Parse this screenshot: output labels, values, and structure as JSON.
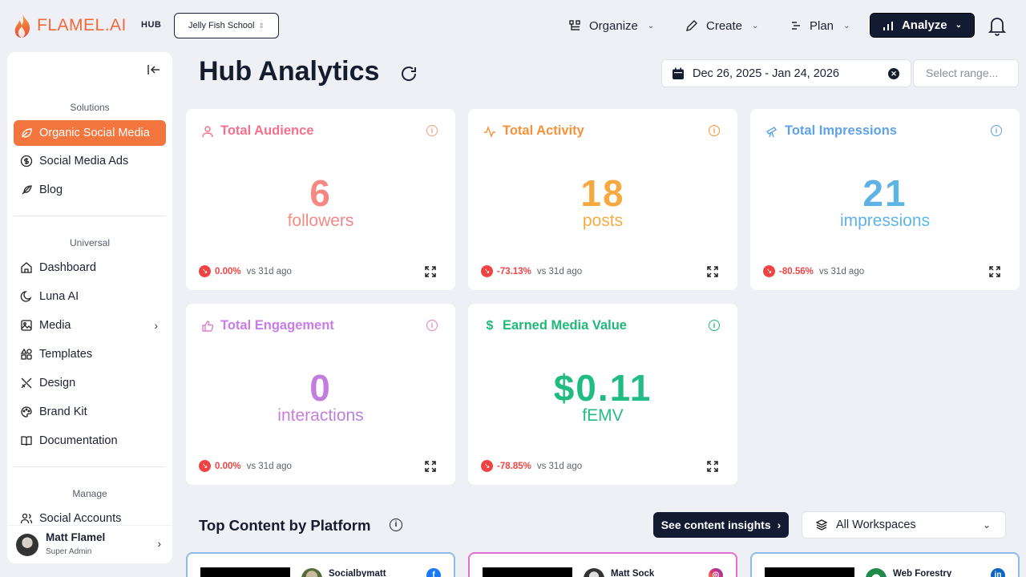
{
  "brand": {
    "logo_text": "FLAMEL.AI",
    "hub_tag": "HUB",
    "accent": "#f06a3b"
  },
  "workspace_select": {
    "value": "Jelly Fish School"
  },
  "topnav": {
    "organize": "Organize",
    "create": "Create",
    "plan": "Plan",
    "analyze": "Analyze"
  },
  "sidebar": {
    "solutions_label": "Solutions",
    "solutions": [
      {
        "label": "Organic Social Media",
        "icon": "leaf-icon",
        "active": true
      },
      {
        "label": "Social Media Ads",
        "icon": "dollar-circle-icon"
      },
      {
        "label": "Blog",
        "icon": "feather-icon"
      }
    ],
    "universal_label": "Universal",
    "universal": [
      {
        "label": "Dashboard",
        "icon": "home-icon"
      },
      {
        "label": "Luna AI",
        "icon": "moon-icon"
      },
      {
        "label": "Media",
        "icon": "image-icon"
      },
      {
        "label": "Templates",
        "icon": "shapes-icon"
      },
      {
        "label": "Design",
        "icon": "tools-icon"
      },
      {
        "label": "Brand Kit",
        "icon": "palette-icon"
      },
      {
        "label": "Documentation",
        "icon": "book-icon"
      }
    ],
    "manage_label": "Manage",
    "manage": [
      {
        "label": "Social Accounts",
        "icon": "users-icon"
      }
    ],
    "user": {
      "name": "Matt Flamel",
      "role": "Super Admin"
    }
  },
  "main": {
    "title": "Hub Analytics",
    "date_range": "Dec 26, 2025 - Jan 24, 2026",
    "range_placeholder": "Select range...",
    "cards": [
      {
        "title": "Total Audience",
        "value": "6",
        "unit": "followers",
        "delta": "0.00%",
        "vs": "vs 31d ago",
        "color": "#f4708c"
      },
      {
        "title": "Total Activity",
        "value": "18",
        "unit": "posts",
        "delta": "-73.13%",
        "vs": "vs 31d ago",
        "color": "#f7923a"
      },
      {
        "title": "Total Impressions",
        "value": "21",
        "unit": "impressions",
        "delta": "-80.56%",
        "vs": "vs 31d ago",
        "color": "#5ea3e8"
      },
      {
        "title": "Total Engagement",
        "value": "0",
        "unit": "interactions",
        "delta": "0.00%",
        "vs": "vs 31d ago",
        "color": "#c97be8"
      },
      {
        "title": "Earned Media Value",
        "value": "$0.11",
        "unit": "fEMV",
        "delta": "-78.85%",
        "vs": "vs 31d ago",
        "color": "#1fb87a"
      }
    ],
    "top_content": {
      "title": "Top Content by Platform",
      "insights_button": "See content insights",
      "workspace_filter": "All Workspaces",
      "platforms": [
        {
          "account": "Socialbymatt",
          "platform": "facebook-icon",
          "color": "#8fbbe6"
        },
        {
          "account": "Matt Sock",
          "platform": "instagram-icon",
          "color": "#e56fd0"
        },
        {
          "account": "Web Forestry",
          "platform": "linkedin-icon",
          "color": "#8fbbe6"
        }
      ]
    }
  }
}
